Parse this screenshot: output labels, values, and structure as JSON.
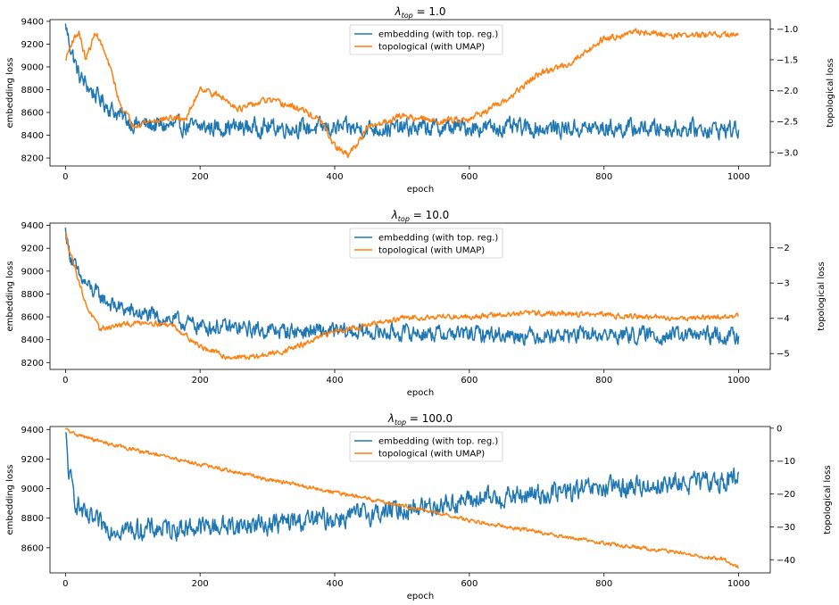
{
  "chart_data": [
    {
      "type": "line",
      "title_prefix": "λ",
      "title_subscript": "top",
      "title_value": " = 1.0",
      "xlabel": "epoch",
      "ylabel_left": "embedding loss",
      "ylabel_right": "topological loss",
      "xlim": [
        -23,
        1047
      ],
      "ylim_left": [
        8130,
        9415
      ],
      "ylim_right": [
        -3.22,
        -0.85
      ],
      "xticks": [
        0,
        200,
        400,
        600,
        800,
        1000
      ],
      "yticks_left": [
        8200,
        8400,
        8600,
        8800,
        9000,
        9200,
        9400
      ],
      "yticks_right": [
        -3.0,
        -2.5,
        -2.0,
        -1.5,
        -1.0
      ],
      "ytick_labels_right": [
        "−3.0",
        "−2.5",
        "−2.0",
        "−1.5",
        "−1.0"
      ],
      "legend": [
        "embedding (with top. reg.)",
        "topological (with UMAP)"
      ],
      "legend_position": "top-center",
      "series": [
        {
          "name": "embedding (with top. reg.)",
          "axis": "left",
          "color": "#1f77b4",
          "noise": 120,
          "x": [
            0,
            5,
            20,
            40,
            70,
            100,
            150,
            200,
            300,
            400,
            500,
            600,
            700,
            800,
            900,
            1000
          ],
          "y": [
            9380,
            9230,
            8920,
            8780,
            8620,
            8500,
            8480,
            8470,
            8470,
            8460,
            8460,
            8470,
            8460,
            8460,
            8460,
            8450
          ]
        },
        {
          "name": "topological (with UMAP)",
          "axis": "right",
          "color": "#ff7f0e",
          "noise": 0.08,
          "x": [
            0,
            10,
            20,
            30,
            45,
            55,
            70,
            80,
            100,
            150,
            180,
            200,
            230,
            260,
            300,
            350,
            380,
            400,
            420,
            450,
            500,
            550,
            600,
            650,
            700,
            750,
            800,
            850,
            900,
            1000
          ],
          "y": [
            -1.5,
            -1.2,
            -1.05,
            -1.5,
            -1.05,
            -1.3,
            -1.75,
            -2.2,
            -2.55,
            -2.45,
            -2.45,
            -1.95,
            -2.1,
            -2.3,
            -2.15,
            -2.3,
            -2.5,
            -2.9,
            -3.05,
            -2.6,
            -2.4,
            -2.5,
            -2.45,
            -2.2,
            -1.75,
            -1.55,
            -1.15,
            -1.05,
            -1.1,
            -1.1
          ]
        }
      ]
    },
    {
      "type": "line",
      "title_prefix": "λ",
      "title_subscript": "top",
      "title_value": " = 10.0",
      "xlabel": "epoch",
      "ylabel_left": "embedding loss",
      "ylabel_right": "topological loss",
      "xlim": [
        -23,
        1047
      ],
      "ylim_left": [
        8140,
        9420
      ],
      "ylim_right": [
        -5.45,
        -1.3
      ],
      "xticks": [
        0,
        200,
        400,
        600,
        800,
        1000
      ],
      "yticks_left": [
        8200,
        8400,
        8600,
        8800,
        9000,
        9200,
        9400
      ],
      "yticks_right": [
        -5,
        -4,
        -3,
        -2
      ],
      "ytick_labels_right": [
        "−5",
        "−4",
        "−3",
        "−2"
      ],
      "legend": [
        "embedding (with top. reg.)",
        "topological (with UMAP)"
      ],
      "legend_position": "top-center",
      "series": [
        {
          "name": "embedding (with top. reg.)",
          "axis": "left",
          "color": "#1f77b4",
          "noise": 110,
          "x": [
            0,
            5,
            20,
            40,
            70,
            100,
            150,
            200,
            300,
            400,
            500,
            600,
            700,
            800,
            900,
            1000
          ],
          "y": [
            9380,
            9180,
            8950,
            8830,
            8700,
            8640,
            8580,
            8520,
            8480,
            8470,
            8460,
            8450,
            8440,
            8440,
            8440,
            8430
          ]
        },
        {
          "name": "topological (with UMAP)",
          "axis": "right",
          "color": "#ff7f0e",
          "noise": 0.12,
          "x": [
            0,
            5,
            15,
            30,
            50,
            80,
            120,
            160,
            200,
            240,
            280,
            320,
            360,
            400,
            450,
            500,
            550,
            600,
            700,
            800,
            900,
            1000
          ],
          "y": [
            -1.55,
            -2.0,
            -2.6,
            -3.6,
            -4.3,
            -4.2,
            -4.1,
            -4.2,
            -4.8,
            -5.1,
            -5.1,
            -4.95,
            -4.7,
            -4.35,
            -4.2,
            -4.0,
            -3.95,
            -3.95,
            -3.85,
            -3.9,
            -4.0,
            -3.95
          ]
        }
      ]
    },
    {
      "type": "line",
      "title_prefix": "λ",
      "title_subscript": "top",
      "title_value": " = 100.0",
      "xlabel": "epoch",
      "ylabel_left": "embedding loss",
      "ylabel_right": "topological loss",
      "xlim": [
        -23,
        1047
      ],
      "ylim_left": [
        8430,
        9420
      ],
      "ylim_right": [
        -44,
        0.5
      ],
      "xticks": [
        0,
        200,
        400,
        600,
        800,
        1000
      ],
      "yticks_left": [
        8600,
        8800,
        9000,
        9200,
        9400
      ],
      "yticks_right": [
        -40,
        -30,
        -20,
        -10,
        0
      ],
      "ytick_labels_right": [
        "−40",
        "−30",
        "−20",
        "−10",
        "0"
      ],
      "legend": [
        "embedding (with top. reg.)",
        "topological (with UMAP)"
      ],
      "legend_position": "top-center",
      "series": [
        {
          "name": "embedding (with top. reg.)",
          "axis": "left",
          "color": "#1f77b4",
          "noise": 110,
          "x": [
            0,
            5,
            15,
            30,
            60,
            100,
            200,
            300,
            400,
            500,
            600,
            700,
            800,
            900,
            1000
          ],
          "y": [
            9380,
            9100,
            8920,
            8800,
            8740,
            8720,
            8740,
            8760,
            8800,
            8860,
            8920,
            8960,
            9000,
            9030,
            9060
          ]
        },
        {
          "name": "topological (with UMAP)",
          "axis": "right",
          "color": "#ff7f0e",
          "noise": 0.9,
          "x": [
            0,
            10,
            50,
            100,
            200,
            300,
            400,
            500,
            600,
            700,
            800,
            900,
            980,
            1000
          ],
          "y": [
            -0.3,
            -1.5,
            -4.0,
            -6.5,
            -11.0,
            -15.5,
            -19.5,
            -23.5,
            -28.0,
            -31.5,
            -35.0,
            -37.5,
            -40.0,
            -42.5
          ]
        }
      ]
    }
  ]
}
